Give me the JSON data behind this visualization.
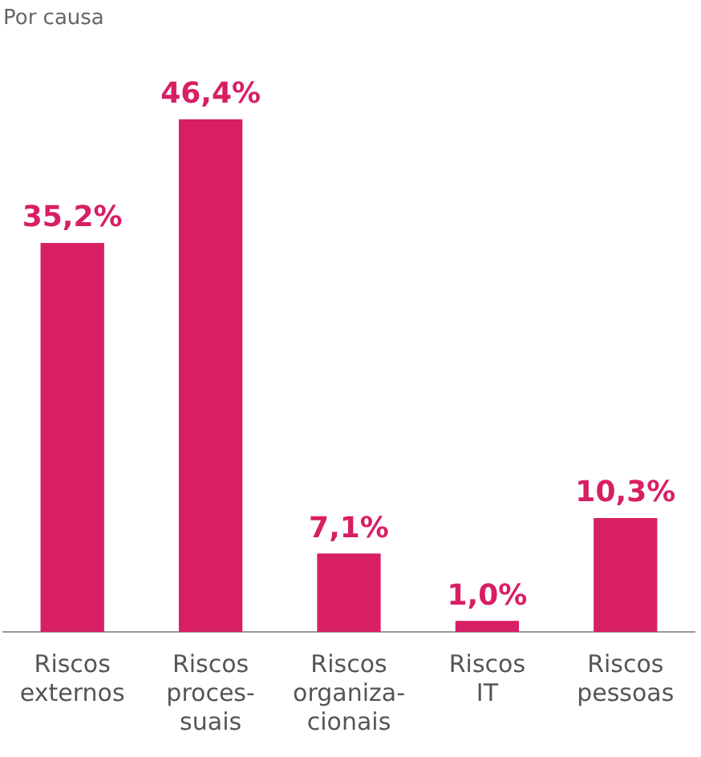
{
  "chart_data": {
    "type": "bar",
    "title": "Por causa",
    "categories": [
      "Riscos\nexternos",
      "Riscos\nproces-\nsuais",
      "Riscos\norganiza-\ncionais",
      "Riscos\nIT",
      "Riscos\npessoas"
    ],
    "values": [
      35.2,
      46.4,
      7.1,
      1.0,
      10.3
    ],
    "value_labels": [
      "35,2%",
      "46,4%",
      "7,1%",
      "1,0%",
      "10,3%"
    ],
    "color": "#d81f64",
    "grid": false,
    "legend": false
  }
}
